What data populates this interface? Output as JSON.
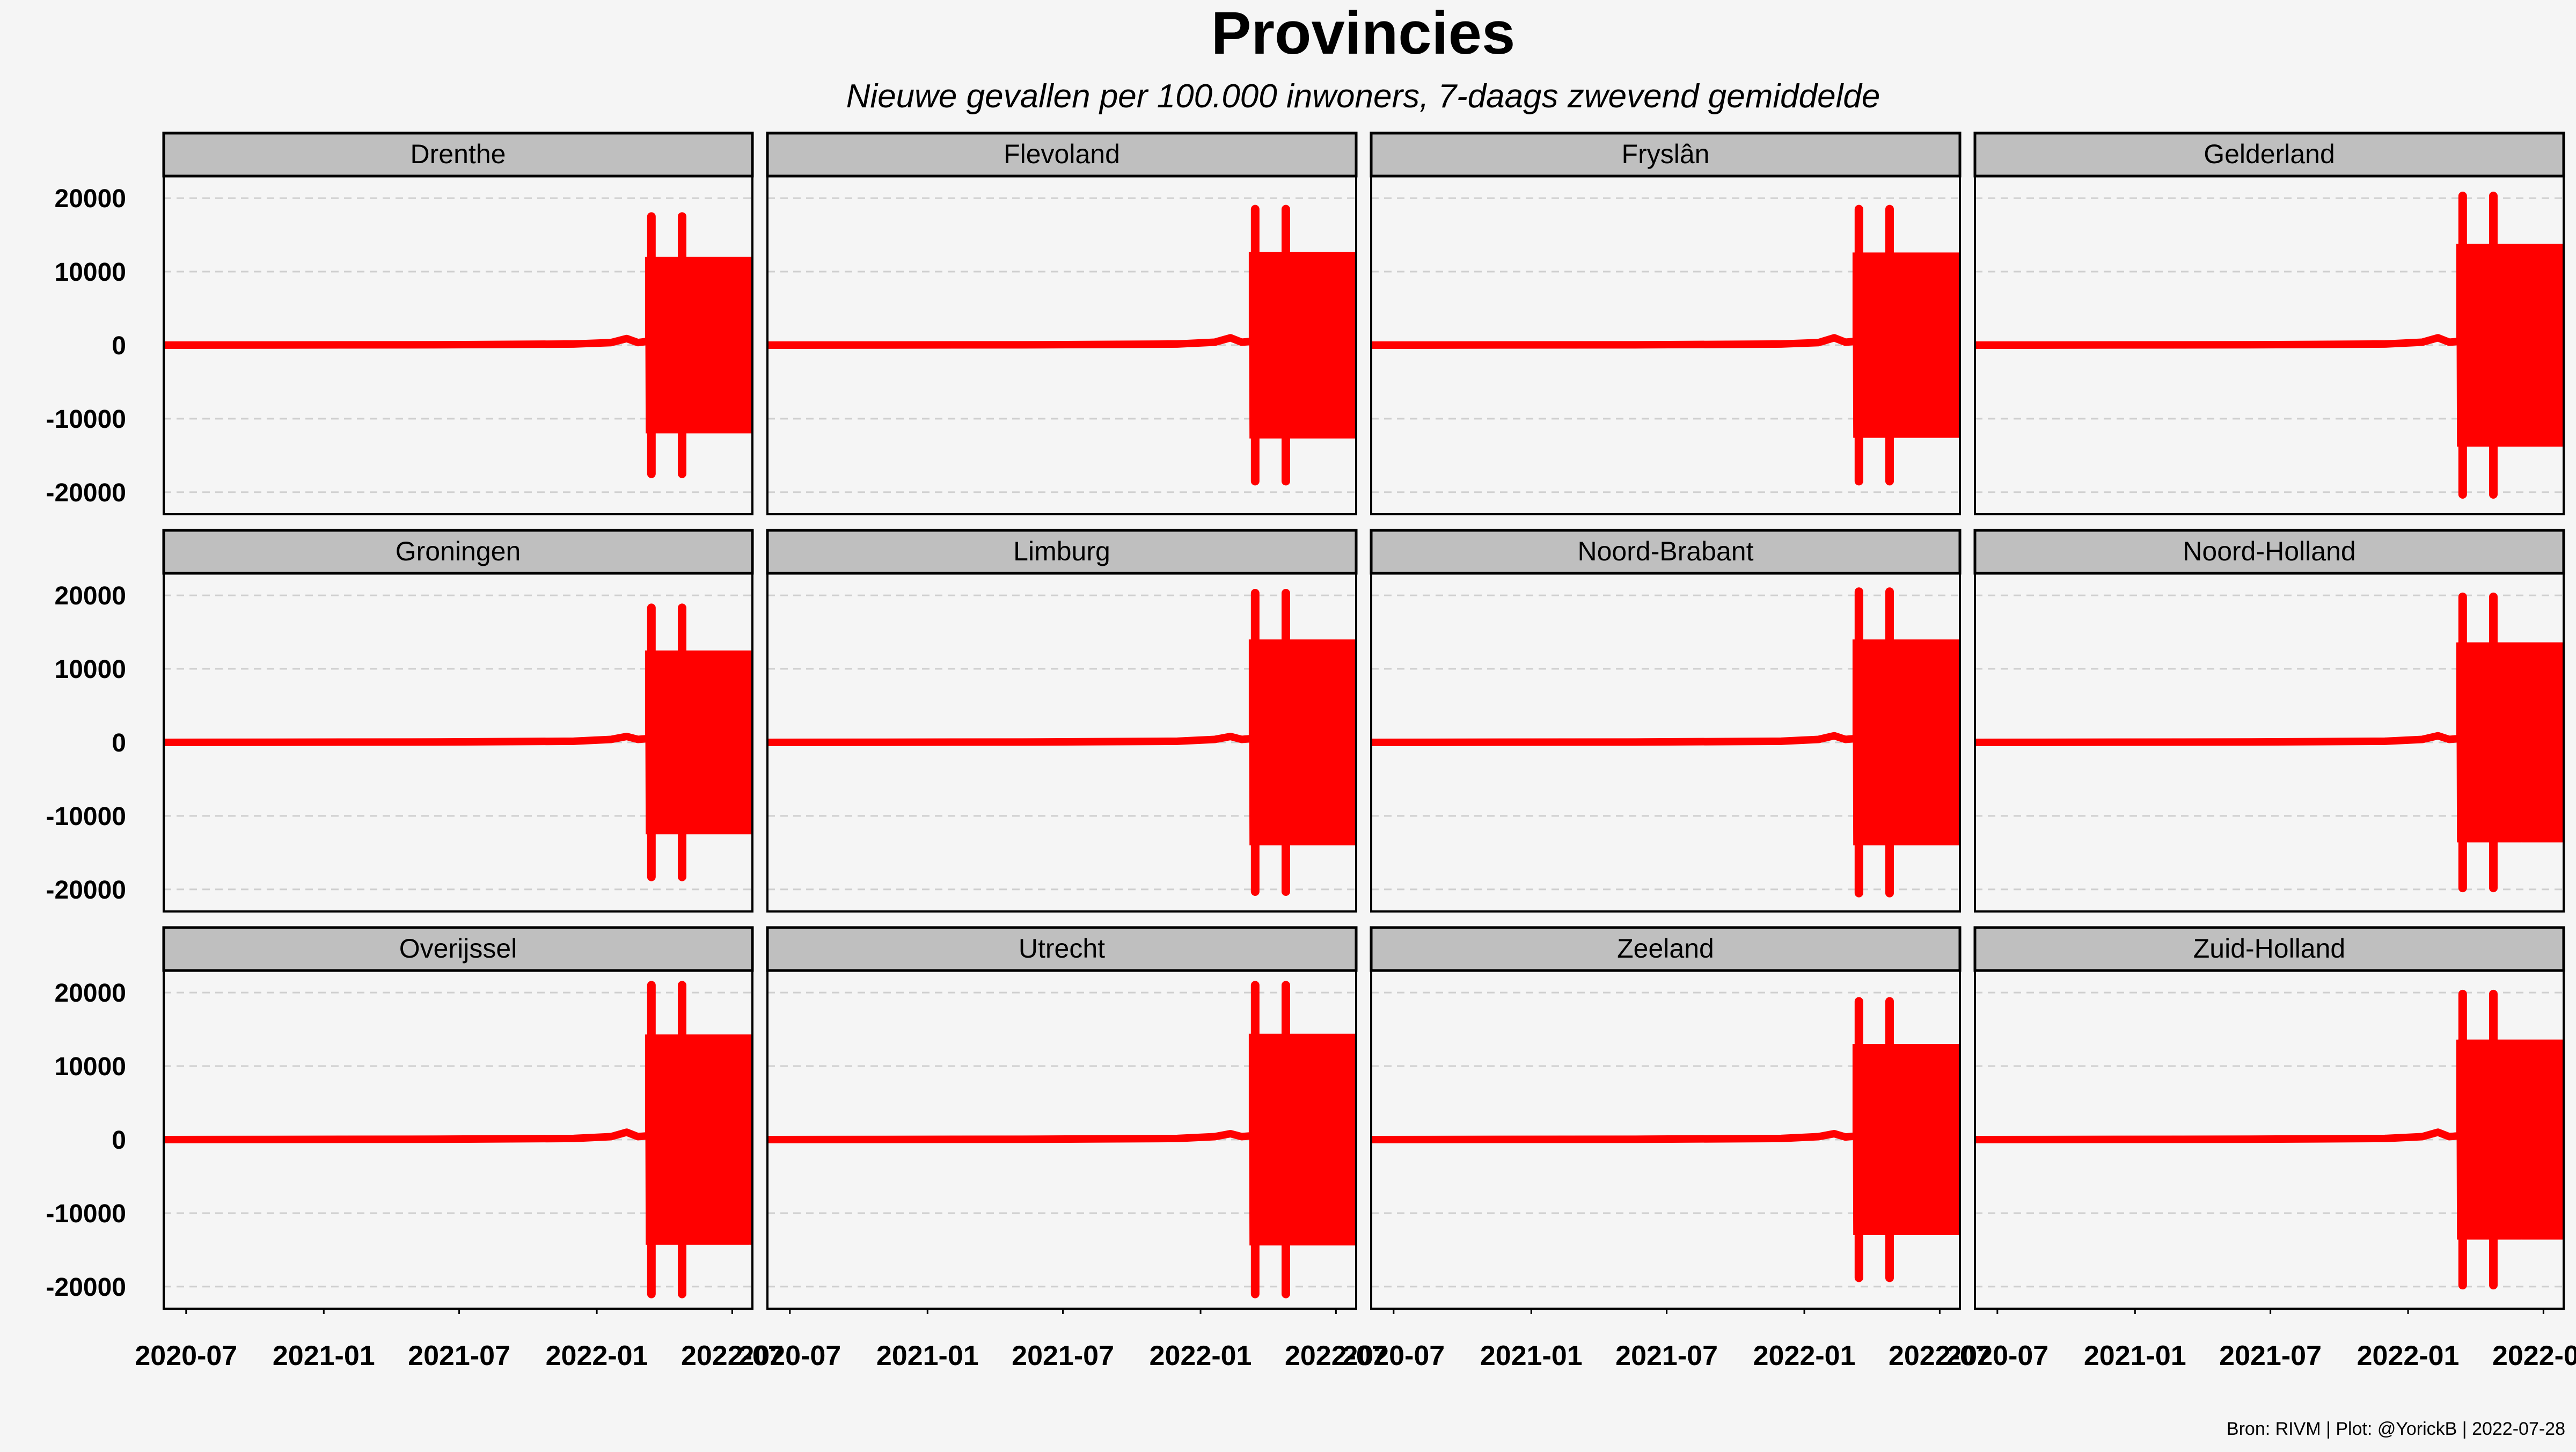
{
  "chart_data": {
    "type": "line",
    "title": "Provincies",
    "subtitle": "Nieuwe gevallen per 100.000 inwoners, 7-daags zwevend gemiddelde",
    "caption": "Bron: RIVM | Plot: @YorickB | 2022-07-28",
    "facet_layout": "4 columns x 3 rows",
    "grid": "horizontal dashed major gridlines",
    "x_range": [
      "2020-06-01",
      "2022-07-28"
    ],
    "x_ticks": [
      "2020-07",
      "2021-01",
      "2021-07",
      "2022-01",
      "2022-07"
    ],
    "y_range": [
      -23000,
      23000
    ],
    "y_ticks": [
      20000,
      10000,
      0,
      -10000,
      -20000
    ],
    "line_color": "#ff0000",
    "panels": [
      {
        "name": "Drenthe",
        "baseline": [
          [
            "2020-06-01",
            0
          ],
          [
            "2021-06-01",
            50
          ],
          [
            "2021-12-01",
            150
          ],
          [
            "2022-01-20",
            350
          ],
          [
            "2022-02-10",
            900
          ],
          [
            "2022-02-25",
            350
          ],
          [
            "2022-03-08",
            500
          ]
        ],
        "oscillation": {
          "start": "2022-03-10",
          "end": "2022-07-28",
          "amplitude": 12000,
          "spikes": [
            {
              "date": "2022-03-15",
              "value": 17500
            },
            {
              "date": "2022-04-25",
              "value": 17500
            }
          ]
        }
      },
      {
        "name": "Flevoland",
        "baseline": [
          [
            "2020-06-01",
            0
          ],
          [
            "2021-06-01",
            50
          ],
          [
            "2021-12-01",
            150
          ],
          [
            "2022-01-20",
            400
          ],
          [
            "2022-02-10",
            1000
          ],
          [
            "2022-02-25",
            400
          ],
          [
            "2022-03-08",
            500
          ]
        ],
        "oscillation": {
          "start": "2022-03-10",
          "end": "2022-07-28",
          "amplitude": 12700,
          "spikes": [
            {
              "date": "2022-03-15",
              "value": 18500
            },
            {
              "date": "2022-04-25",
              "value": 18500
            }
          ]
        }
      },
      {
        "name": "Fryslân",
        "baseline": [
          [
            "2020-06-01",
            0
          ],
          [
            "2021-06-01",
            50
          ],
          [
            "2021-12-01",
            150
          ],
          [
            "2022-01-20",
            350
          ],
          [
            "2022-02-10",
            1000
          ],
          [
            "2022-02-25",
            400
          ],
          [
            "2022-03-08",
            500
          ]
        ],
        "oscillation": {
          "start": "2022-03-10",
          "end": "2022-07-28",
          "amplitude": 12600,
          "spikes": [
            {
              "date": "2022-03-15",
              "value": 18500
            },
            {
              "date": "2022-04-25",
              "value": 18500
            }
          ]
        }
      },
      {
        "name": "Gelderland",
        "baseline": [
          [
            "2020-06-01",
            0
          ],
          [
            "2021-06-01",
            50
          ],
          [
            "2021-12-01",
            150
          ],
          [
            "2022-01-20",
            400
          ],
          [
            "2022-02-10",
            1000
          ],
          [
            "2022-02-25",
            400
          ],
          [
            "2022-03-08",
            500
          ]
        ],
        "oscillation": {
          "start": "2022-03-10",
          "end": "2022-07-28",
          "amplitude": 13800,
          "spikes": [
            {
              "date": "2022-03-15",
              "value": 20300
            },
            {
              "date": "2022-04-25",
              "value": 20300
            }
          ]
        }
      },
      {
        "name": "Groningen",
        "baseline": [
          [
            "2020-06-01",
            0
          ],
          [
            "2021-06-01",
            50
          ],
          [
            "2021-12-01",
            150
          ],
          [
            "2022-01-20",
            400
          ],
          [
            "2022-02-10",
            800
          ],
          [
            "2022-02-25",
            400
          ],
          [
            "2022-03-08",
            500
          ]
        ],
        "oscillation": {
          "start": "2022-03-10",
          "end": "2022-07-28",
          "amplitude": 12500,
          "spikes": [
            {
              "date": "2022-03-15",
              "value": 18300
            },
            {
              "date": "2022-04-25",
              "value": 18300
            }
          ]
        }
      },
      {
        "name": "Limburg",
        "baseline": [
          [
            "2020-06-01",
            0
          ],
          [
            "2021-06-01",
            50
          ],
          [
            "2021-12-01",
            150
          ],
          [
            "2022-01-20",
            400
          ],
          [
            "2022-02-10",
            800
          ],
          [
            "2022-02-25",
            400
          ],
          [
            "2022-03-08",
            500
          ]
        ],
        "oscillation": {
          "start": "2022-03-10",
          "end": "2022-07-28",
          "amplitude": 14000,
          "spikes": [
            {
              "date": "2022-03-15",
              "value": 20300
            },
            {
              "date": "2022-04-25",
              "value": 20300
            }
          ]
        }
      },
      {
        "name": "Noord-Brabant",
        "baseline": [
          [
            "2020-06-01",
            0
          ],
          [
            "2021-06-01",
            50
          ],
          [
            "2021-12-01",
            150
          ],
          [
            "2022-01-20",
            400
          ],
          [
            "2022-02-10",
            900
          ],
          [
            "2022-02-25",
            400
          ],
          [
            "2022-03-08",
            500
          ]
        ],
        "oscillation": {
          "start": "2022-03-10",
          "end": "2022-07-28",
          "amplitude": 14000,
          "spikes": [
            {
              "date": "2022-03-15",
              "value": 20500
            },
            {
              "date": "2022-04-25",
              "value": 20500
            }
          ]
        }
      },
      {
        "name": "Noord-Holland",
        "baseline": [
          [
            "2020-06-01",
            0
          ],
          [
            "2021-06-01",
            50
          ],
          [
            "2021-12-01",
            150
          ],
          [
            "2022-01-20",
            400
          ],
          [
            "2022-02-10",
            900
          ],
          [
            "2022-02-25",
            400
          ],
          [
            "2022-03-08",
            500
          ]
        ],
        "oscillation": {
          "start": "2022-03-10",
          "end": "2022-07-28",
          "amplitude": 13600,
          "spikes": [
            {
              "date": "2022-03-15",
              "value": 19800
            },
            {
              "date": "2022-04-25",
              "value": 19800
            }
          ]
        }
      },
      {
        "name": "Overijssel",
        "baseline": [
          [
            "2020-06-01",
            0
          ],
          [
            "2021-06-01",
            50
          ],
          [
            "2021-12-01",
            150
          ],
          [
            "2022-01-20",
            400
          ],
          [
            "2022-02-10",
            1000
          ],
          [
            "2022-02-25",
            400
          ],
          [
            "2022-03-08",
            500
          ]
        ],
        "oscillation": {
          "start": "2022-03-10",
          "end": "2022-07-28",
          "amplitude": 14300,
          "spikes": [
            {
              "date": "2022-03-15",
              "value": 21000
            },
            {
              "date": "2022-04-25",
              "value": 21000
            }
          ]
        }
      },
      {
        "name": "Utrecht",
        "baseline": [
          [
            "2020-06-01",
            0
          ],
          [
            "2021-06-01",
            50
          ],
          [
            "2021-12-01",
            150
          ],
          [
            "2022-01-20",
            400
          ],
          [
            "2022-02-10",
            800
          ],
          [
            "2022-02-25",
            400
          ],
          [
            "2022-03-08",
            500
          ]
        ],
        "oscillation": {
          "start": "2022-03-10",
          "end": "2022-07-28",
          "amplitude": 14400,
          "spikes": [
            {
              "date": "2022-03-15",
              "value": 21000
            },
            {
              "date": "2022-04-25",
              "value": 21000
            }
          ]
        }
      },
      {
        "name": "Zeeland",
        "baseline": [
          [
            "2020-06-01",
            0
          ],
          [
            "2021-06-01",
            50
          ],
          [
            "2021-12-01",
            150
          ],
          [
            "2022-01-20",
            400
          ],
          [
            "2022-02-10",
            800
          ],
          [
            "2022-02-25",
            350
          ],
          [
            "2022-03-08",
            450
          ]
        ],
        "oscillation": {
          "start": "2022-03-10",
          "end": "2022-07-28",
          "amplitude": 13000,
          "spikes": [
            {
              "date": "2022-03-15",
              "value": 18800
            },
            {
              "date": "2022-04-25",
              "value": 18800
            }
          ]
        }
      },
      {
        "name": "Zuid-Holland",
        "baseline": [
          [
            "2020-06-01",
            0
          ],
          [
            "2021-06-01",
            50
          ],
          [
            "2021-12-01",
            150
          ],
          [
            "2022-01-20",
            400
          ],
          [
            "2022-02-10",
            1000
          ],
          [
            "2022-02-25",
            400
          ],
          [
            "2022-03-08",
            500
          ]
        ],
        "oscillation": {
          "start": "2022-03-10",
          "end": "2022-07-28",
          "amplitude": 13600,
          "spikes": [
            {
              "date": "2022-03-15",
              "value": 19800
            },
            {
              "date": "2022-04-25",
              "value": 19800
            }
          ]
        }
      }
    ]
  }
}
